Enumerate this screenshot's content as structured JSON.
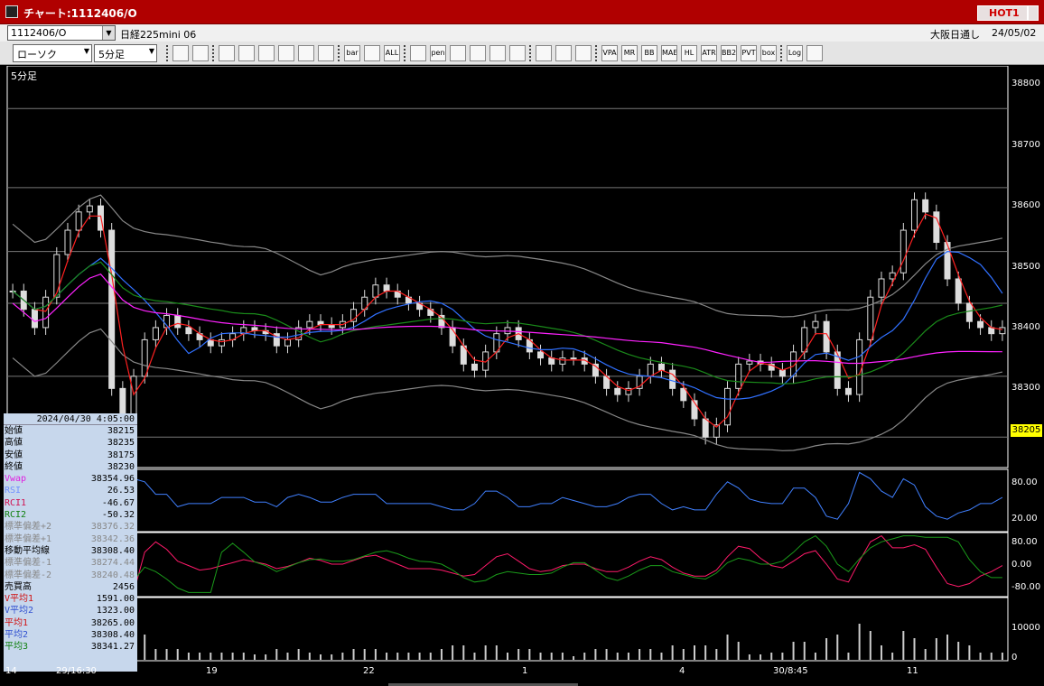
{
  "window": {
    "title": "チャート:1112406/O",
    "hot_label": "HOT1"
  },
  "toolbar1": {
    "symbol": "1112406/O",
    "instrument": "日経225mini 06",
    "market": "大阪日通し",
    "date": "24/05/02"
  },
  "toolbar2": {
    "chart_type": "ローソク",
    "interval": "5分足",
    "buttons": [
      "zoom",
      "cursor",
      "move",
      "draw",
      "tool",
      "chart",
      "insert",
      "disabled",
      "bar",
      "bars",
      "ALL",
      "line",
      "pen",
      "arrow",
      "undo",
      "list",
      "trash",
      "grid",
      "paint",
      "color",
      "VPA",
      "MR",
      "BB",
      "MAE",
      "HL",
      "ATR",
      "BB2",
      "PVT",
      "box",
      "Log",
      "exit"
    ]
  },
  "chart": {
    "interval_label": "5分足",
    "price_ticks": [
      "38800",
      "38700",
      "38600",
      "38500",
      "38400",
      "38300"
    ],
    "current_price": "38205",
    "rsi_ticks": [
      "80.00",
      "20.00"
    ],
    "rci_ticks": [
      "80.00",
      "0.00",
      "-80.00"
    ],
    "volume_ticks": [
      "10000",
      "0"
    ],
    "x_labels": [
      "14",
      "29/16:30",
      "19",
      "22",
      "1",
      "4",
      "30/8:45",
      "11"
    ],
    "legend_colors": {
      "ma_short": "#ff2020",
      "ma_mid": "#3070ff",
      "ma_long": "#1a8a1a",
      "vwap": "#ff22ff",
      "bands": "#888888",
      "rsi": "#4080ff",
      "rci1": "#ff1a6a",
      "rci2": "#1a9a1a"
    }
  },
  "info": {
    "timestamp": "2024/04/30 4:05:00",
    "rows": [
      {
        "label": "始値",
        "value": "38215",
        "color": "#000"
      },
      {
        "label": "高値",
        "value": "38235",
        "color": "#000"
      },
      {
        "label": "安値",
        "value": "38175",
        "color": "#000"
      },
      {
        "label": "終値",
        "value": "38230",
        "color": "#000"
      },
      {
        "label": "Vwap",
        "value": "38354.96",
        "color": "#e020e0"
      },
      {
        "label": "RSI",
        "value": "26.53",
        "color": "#7090ff"
      },
      {
        "label": "RCI1",
        "value": "-46.67",
        "color": "#d01050"
      },
      {
        "label": "RCI2",
        "value": "-50.32",
        "color": "#108010"
      },
      {
        "label": "標準偏差+2",
        "value": "38376.32",
        "color": "#888"
      },
      {
        "label": "標準偏差+1",
        "value": "38342.36",
        "color": "#888"
      },
      {
        "label": "移動平均線",
        "value": "38308.40",
        "color": "#000"
      },
      {
        "label": "標準偏差-1",
        "value": "38274.44",
        "color": "#888"
      },
      {
        "label": "標準偏差-2",
        "value": "38240.48",
        "color": "#888"
      },
      {
        "label": "売買高",
        "value": "2456",
        "color": "#000"
      },
      {
        "label": "V平均1",
        "value": "1591.00",
        "color": "#d01010"
      },
      {
        "label": "V平均2",
        "value": "1323.00",
        "color": "#3050d0"
      },
      {
        "label": "平均1",
        "value": "38265.00",
        "color": "#d01010"
      },
      {
        "label": "平均2",
        "value": "38308.40",
        "color": "#3050d0"
      },
      {
        "label": "平均3",
        "value": "38341.27",
        "color": "#108010"
      }
    ]
  },
  "chart_data": {
    "type": "candlestick",
    "closes": [
      38460,
      38430,
      38400,
      38450,
      38520,
      38560,
      38590,
      38600,
      38560,
      38300,
      38250,
      38320,
      38380,
      38400,
      38420,
      38400,
      38390,
      38380,
      38370,
      38380,
      38390,
      38400,
      38395,
      38390,
      38370,
      38380,
      38400,
      38410,
      38405,
      38400,
      38410,
      38430,
      38450,
      38470,
      38460,
      38450,
      38440,
      38430,
      38420,
      38400,
      38370,
      38340,
      38330,
      38360,
      38390,
      38400,
      38380,
      38360,
      38350,
      38340,
      38350,
      38350,
      38340,
      38320,
      38300,
      38290,
      38300,
      38320,
      38340,
      38330,
      38300,
      38280,
      38250,
      38220,
      38240,
      38300,
      38340,
      38345,
      38340,
      38330,
      38320,
      38360,
      38400,
      38410,
      38360,
      38300,
      38290,
      38380,
      38450,
      38480,
      38490,
      38560,
      38610,
      38590,
      38540,
      38480,
      38440,
      38410,
      38400,
      38390,
      38400
    ],
    "ylim": [
      38170,
      38830
    ]
  }
}
